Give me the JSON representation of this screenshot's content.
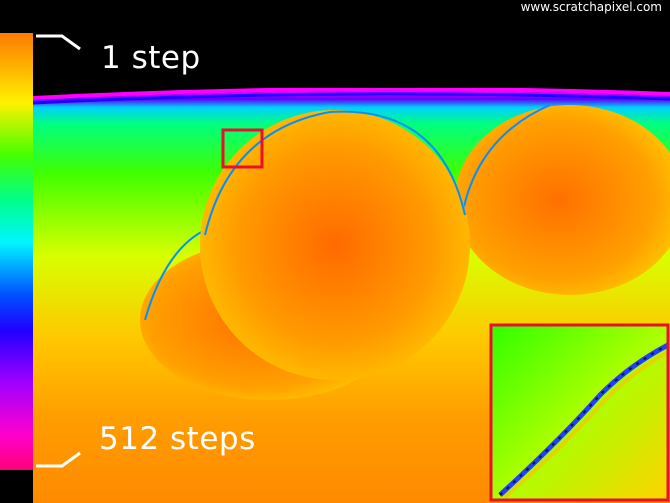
{
  "watermark": "www.scratchapixel.com",
  "colorbar": {
    "top_label": "1 step",
    "bottom_label": "512 steps",
    "gradient_colors": [
      "#ff8c00",
      "#ffe600",
      "#66ff00",
      "#00ff66",
      "#00ffee",
      "#0044ff",
      "#5500ff",
      "#c800ff",
      "#ff00aa",
      "#ff0077"
    ]
  },
  "image": {
    "description_colors": {
      "background_bottom": "#ff8a00",
      "background_top": "#3cff00",
      "sphere_fill": "#ff8c00",
      "sphere_edge": "#0090ff",
      "highlight_box": "#e8102a"
    }
  },
  "inset_border_color": "#e8102a"
}
